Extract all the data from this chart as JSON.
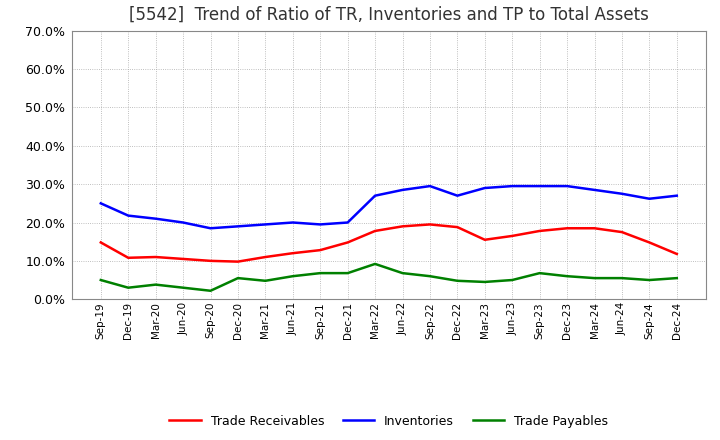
{
  "title": "[5542]  Trend of Ratio of TR, Inventories and TP to Total Assets",
  "x_labels": [
    "Sep-19",
    "Dec-19",
    "Mar-20",
    "Jun-20",
    "Sep-20",
    "Dec-20",
    "Mar-21",
    "Jun-21",
    "Sep-21",
    "Dec-21",
    "Mar-22",
    "Jun-22",
    "Sep-22",
    "Dec-22",
    "Mar-23",
    "Jun-23",
    "Sep-23",
    "Dec-23",
    "Mar-24",
    "Jun-24",
    "Sep-24",
    "Dec-24"
  ],
  "trade_receivables": [
    0.148,
    0.108,
    0.11,
    0.105,
    0.1,
    0.098,
    0.11,
    0.12,
    0.128,
    0.148,
    0.178,
    0.19,
    0.195,
    0.188,
    0.155,
    0.165,
    0.178,
    0.185,
    0.185,
    0.175,
    0.148,
    0.118
  ],
  "inventories": [
    0.25,
    0.218,
    0.21,
    0.2,
    0.185,
    0.19,
    0.195,
    0.2,
    0.195,
    0.2,
    0.27,
    0.285,
    0.295,
    0.27,
    0.29,
    0.295,
    0.295,
    0.295,
    0.285,
    0.275,
    0.262,
    0.27
  ],
  "trade_payables": [
    0.05,
    0.03,
    0.038,
    0.03,
    0.022,
    0.055,
    0.048,
    0.06,
    0.068,
    0.068,
    0.092,
    0.068,
    0.06,
    0.048,
    0.045,
    0.05,
    0.068,
    0.06,
    0.055,
    0.055,
    0.05,
    0.055
  ],
  "ylim": [
    0.0,
    0.7
  ],
  "yticks": [
    0.0,
    0.1,
    0.2,
    0.3,
    0.4,
    0.5,
    0.6,
    0.7
  ],
  "tr_color": "#ff0000",
  "inv_color": "#0000ff",
  "tp_color": "#008000",
  "background_color": "#ffffff",
  "grid_color": "#aaaaaa",
  "title_fontsize": 12,
  "legend_labels": [
    "Trade Receivables",
    "Inventories",
    "Trade Payables"
  ]
}
